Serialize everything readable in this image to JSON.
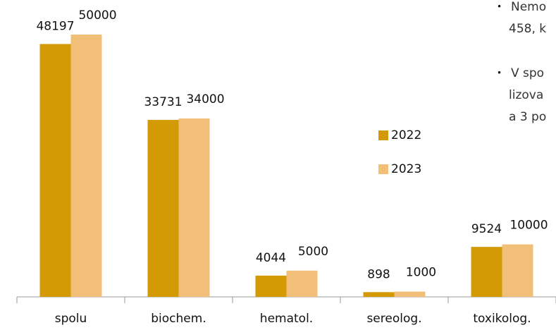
{
  "chart_data": {
    "type": "bar",
    "categories": [
      "spolu",
      "biochem.",
      "hematol.",
      "sereolog.",
      "toxikolog."
    ],
    "series": [
      {
        "name": "2022",
        "color": "#d49a06",
        "values": [
          48197,
          33731,
          4044,
          898,
          9524
        ]
      },
      {
        "name": "2023",
        "color": "#f2bf78",
        "values": [
          50000,
          34000,
          5000,
          1000,
          10000
        ]
      }
    ],
    "ylim": [
      0,
      50000
    ],
    "legend": "right"
  },
  "side_text": {
    "bullets": [
      [
        "Nemo",
        "458, k"
      ],
      [
        "V spo",
        "lizova",
        "a 3 po"
      ]
    ]
  }
}
